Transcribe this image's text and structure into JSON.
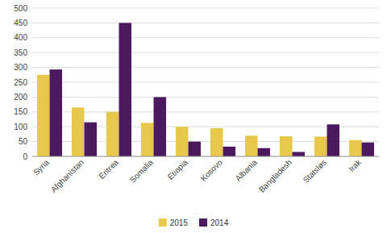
{
  "chart_data": {
    "type": "bar",
    "categories": [
      "Syria",
      "Afghanistan",
      "Eritrea",
      "Somalia",
      "Etiopia",
      "Kosovo",
      "Albania",
      "Bangladesh",
      "Statsløs",
      "Irak"
    ],
    "series": [
      {
        "name": "2015",
        "color": "#e8c84a",
        "values": [
          275,
          165,
          150,
          113,
          100,
          95,
          70,
          68,
          67,
          55
        ]
      },
      {
        "name": "2014",
        "color": "#4b1a5e",
        "values": [
          293,
          115,
          450,
          200,
          50,
          33,
          28,
          15,
          108,
          47
        ]
      }
    ],
    "ylim": [
      0,
      500
    ],
    "yticks": [
      0,
      50,
      100,
      150,
      200,
      250,
      300,
      350,
      400,
      450,
      500
    ],
    "grid": true,
    "legend": "bottom"
  }
}
